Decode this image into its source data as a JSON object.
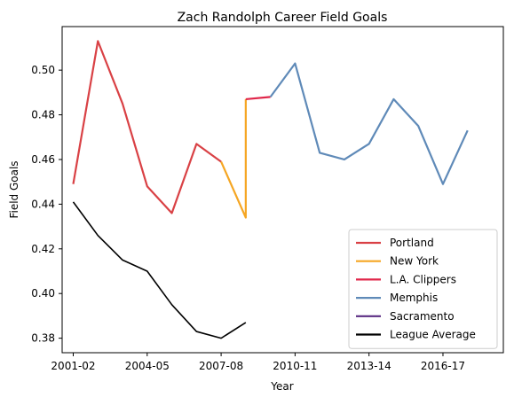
{
  "chart_data": {
    "type": "line",
    "title": "Zach Randolph Career Field Goals",
    "xlabel": "Year",
    "ylabel": "Field Goals",
    "xlim": [
      2000.55,
      2018.45
    ],
    "ylim": [
      0.3735,
      0.5195
    ],
    "x_ticks": [
      {
        "value": 2001,
        "label": "2001-02"
      },
      {
        "value": 2004,
        "label": "2004-05"
      },
      {
        "value": 2007,
        "label": "2007-08"
      },
      {
        "value": 2010,
        "label": "2010-11"
      },
      {
        "value": 2013,
        "label": "2013-14"
      },
      {
        "value": 2016,
        "label": "2016-17"
      }
    ],
    "y_ticks": [
      {
        "value": 0.38,
        "label": "0.38"
      },
      {
        "value": 0.4,
        "label": "0.40"
      },
      {
        "value": 0.42,
        "label": "0.42"
      },
      {
        "value": 0.44,
        "label": "0.44"
      },
      {
        "value": 0.46,
        "label": "0.46"
      },
      {
        "value": 0.48,
        "label": "0.48"
      },
      {
        "value": 0.5,
        "label": "0.50"
      }
    ],
    "grid": false,
    "legend_position": "lower-right",
    "series": [
      {
        "name": "Portland",
        "color": "#d94145",
        "points": [
          [
            2001,
            0.449
          ],
          [
            2002,
            0.513
          ],
          [
            2003,
            0.485
          ],
          [
            2004,
            0.448
          ],
          [
            2005,
            0.436
          ],
          [
            2006,
            0.467
          ],
          [
            2007,
            0.459
          ]
        ]
      },
      {
        "name": "New York",
        "color": "#f5a623",
        "points": [
          [
            2007,
            0.459
          ],
          [
            2008,
            0.434
          ],
          [
            2008,
            0.487
          ]
        ]
      },
      {
        "name": "L.A. Clippers",
        "color": "#e0264a",
        "points": [
          [
            2008,
            0.487
          ],
          [
            2009,
            0.488
          ]
        ]
      },
      {
        "name": "Memphis",
        "color": "#5f8ab8",
        "points": [
          [
            2009,
            0.488
          ],
          [
            2010,
            0.503
          ],
          [
            2011,
            0.463
          ],
          [
            2012,
            0.46
          ],
          [
            2013,
            0.467
          ],
          [
            2014,
            0.487
          ],
          [
            2015,
            0.475
          ],
          [
            2016,
            0.449
          ],
          [
            2017,
            0.473
          ]
        ]
      },
      {
        "name": "Sacramento",
        "color": "#5b2c83",
        "points": []
      },
      {
        "name": "League Average",
        "color": "#000000",
        "points": [
          [
            2001,
            0.441
          ],
          [
            2002,
            0.426
          ],
          [
            2003,
            0.415
          ],
          [
            2004,
            0.41
          ],
          [
            2005,
            0.395
          ],
          [
            2006,
            0.383
          ],
          [
            2007,
            0.38
          ],
          [
            2008,
            0.387
          ]
        ]
      }
    ]
  }
}
